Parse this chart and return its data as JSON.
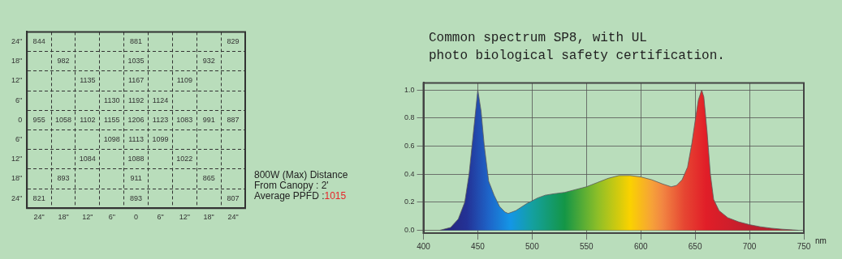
{
  "chart_data": [
    {
      "type": "heatmap",
      "categories": [
        "24\"",
        "18\"",
        "12\"",
        "6\"",
        "0",
        "6\"",
        "12\"",
        "18\"",
        "24\""
      ],
      "y_categories": [
        "24\"",
        "18\"",
        "12\"",
        "6\"",
        "0",
        "6\"",
        "12\"",
        "18\"",
        "24\""
      ],
      "cells": [
        [
          844,
          null,
          null,
          null,
          881,
          null,
          null,
          null,
          829
        ],
        [
          null,
          982,
          null,
          null,
          1035,
          null,
          null,
          932,
          null
        ],
        [
          null,
          null,
          1135,
          null,
          1167,
          null,
          1109,
          null,
          null
        ],
        [
          null,
          null,
          null,
          1130,
          1192,
          1124,
          null,
          null,
          null
        ],
        [
          955,
          1058,
          1102,
          1155,
          1206,
          1123,
          1083,
          991,
          887
        ],
        [
          null,
          null,
          null,
          1098,
          1113,
          1099,
          null,
          null,
          null
        ],
        [
          null,
          null,
          1084,
          null,
          1088,
          null,
          1022,
          null,
          null
        ],
        [
          null,
          893,
          null,
          null,
          911,
          null,
          null,
          865,
          null
        ],
        [
          821,
          null,
          null,
          null,
          893,
          null,
          null,
          null,
          807
        ]
      ],
      "data_labels": true,
      "annotations": [
        "800W (Max) Distance",
        "From Canopy : 2'",
        "Average PPFD :1015"
      ]
    },
    {
      "type": "area",
      "title": "Common spectrum SP8, with UL\nphoto biological safety certification.",
      "xlabel": "nm",
      "xlim": [
        400,
        750
      ],
      "xticks": [
        400,
        450,
        500,
        550,
        600,
        650,
        700,
        750
      ],
      "ylim": [
        -0.02,
        1.05
      ],
      "yticks": [
        {
          "value": 0,
          "label": "0.0"
        },
        0.2,
        0.4,
        0.6,
        0.8,
        {
          "value": 1,
          "label": "1.0"
        }
      ],
      "grid": true,
      "series": [
        {
          "color": "#5a5a5a",
          "x": [
            415,
            425,
            432,
            438,
            442,
            446,
            450,
            453,
            456,
            460,
            465,
            470,
            475,
            478,
            485,
            495,
            505,
            512,
            520,
            530,
            540,
            550,
            560,
            570,
            580,
            590,
            600,
            610,
            620,
            628,
            633,
            638,
            643,
            647,
            650,
            653,
            656,
            658,
            661,
            664,
            667,
            672,
            680,
            690,
            700,
            710,
            720,
            730,
            740,
            745
          ],
          "values": [
            0,
            0.02,
            0.08,
            0.2,
            0.4,
            0.7,
            1.0,
            0.85,
            0.6,
            0.35,
            0.25,
            0.17,
            0.13,
            0.12,
            0.14,
            0.19,
            0.23,
            0.25,
            0.26,
            0.27,
            0.29,
            0.31,
            0.34,
            0.37,
            0.39,
            0.39,
            0.38,
            0.36,
            0.33,
            0.31,
            0.32,
            0.36,
            0.45,
            0.62,
            0.78,
            0.93,
            1.0,
            0.95,
            0.7,
            0.4,
            0.22,
            0.14,
            0.09,
            0.06,
            0.04,
            0.025,
            0.015,
            0.008,
            0.003,
            0
          ]
        }
      ]
    }
  ]
}
